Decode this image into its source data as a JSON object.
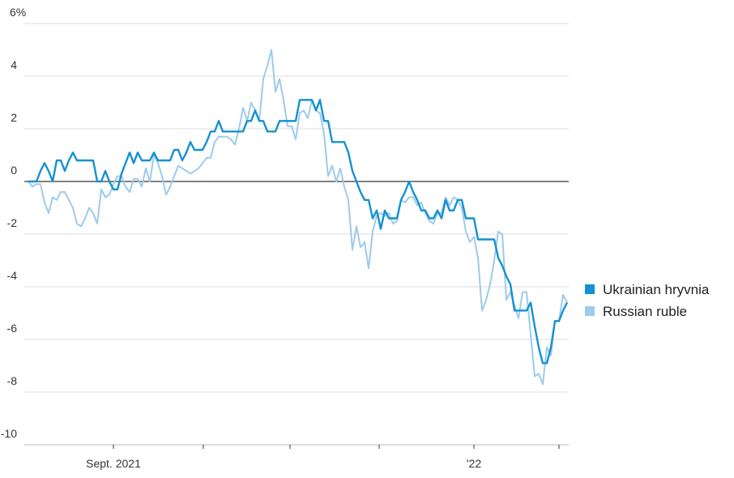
{
  "chart_data": {
    "type": "line",
    "ylim": [
      -10,
      6
    ],
    "yticks": [
      {
        "value": 6,
        "label": "6%"
      },
      4,
      2,
      0,
      -2,
      -4,
      -6,
      -8,
      -10
    ],
    "x_tick_labels": [
      "Sept. 2021",
      null,
      null,
      null,
      "'22",
      null
    ],
    "grid": true,
    "legend": "right",
    "series": [
      {
        "name": "Ukrainian hryvnia",
        "color": "#1591d1",
        "values": [
          0,
          0,
          0,
          0.4,
          0.7,
          0.4,
          0,
          0.8,
          0.8,
          0.4,
          0.8,
          1.1,
          0.8,
          0.8,
          0.8,
          0.8,
          0.8,
          0,
          0,
          0.4,
          0,
          -0.3,
          -0.3,
          0.3,
          0.7,
          1.1,
          0.7,
          1.1,
          0.8,
          0.8,
          0.8,
          1.1,
          0.8,
          0.8,
          0.8,
          0.8,
          1.2,
          1.2,
          0.8,
          1.1,
          1.5,
          1.2,
          1.2,
          1.2,
          1.5,
          1.9,
          1.9,
          2.3,
          1.9,
          1.9,
          1.9,
          1.9,
          1.9,
          1.9,
          2.3,
          2.3,
          2.7,
          2.3,
          2.3,
          1.9,
          1.9,
          1.9,
          2.3,
          2.3,
          2.3,
          2.3,
          2.3,
          3.1,
          3.1,
          3.1,
          3.1,
          2.7,
          3.1,
          2.3,
          2.3,
          1.5,
          1.5,
          1.5,
          1.5,
          1.1,
          0.4,
          0,
          -0.4,
          -0.7,
          -0.7,
          -1.4,
          -1.1,
          -1.8,
          -1.1,
          -1.4,
          -1.4,
          -1.4,
          -0.7,
          -0.4,
          0,
          -0.4,
          -0.7,
          -1.1,
          -1.1,
          -1.4,
          -1.4,
          -1.1,
          -1.4,
          -0.7,
          -1.1,
          -1.1,
          -0.7,
          -0.7,
          -1.4,
          -1.4,
          -1.4,
          -2.2,
          -2.2,
          -2.2,
          -2.2,
          -2.2,
          -2.9,
          -3.2,
          -3.6,
          -3.9,
          -4.9,
          -4.9,
          -4.9,
          -4.9,
          -4.6,
          -5.5,
          -6.3,
          -6.9,
          -6.9,
          -6.3,
          -5.3,
          -5.3,
          -4.9,
          -4.6
        ]
      },
      {
        "name": "Russian ruble",
        "color": "#9dcbeb",
        "values": [
          0,
          -0.2,
          -0.1,
          -0.1,
          -0.8,
          -1.2,
          -0.6,
          -0.7,
          -0.4,
          -0.4,
          -0.7,
          -1.0,
          -1.6,
          -1.7,
          -1.4,
          -1.0,
          -1.2,
          -1.6,
          -0.3,
          -0.6,
          -0.5,
          -0.1,
          0.2,
          0.2,
          -0.2,
          -0.4,
          0.1,
          0.1,
          -0.2,
          0.5,
          0,
          1.0,
          0.7,
          0.2,
          -0.5,
          -0.2,
          0.2,
          0.6,
          0.5,
          0.4,
          0.3,
          0.4,
          0.5,
          0.7,
          0.9,
          0.9,
          1.5,
          1.7,
          1.7,
          1.7,
          1.6,
          1.4,
          2.0,
          2.8,
          2.3,
          3.0,
          2.7,
          2.3,
          3.9,
          4.4,
          5.0,
          3.4,
          3.9,
          3.1,
          2.1,
          2.1,
          1.6,
          2.6,
          2.7,
          2.4,
          3.1,
          2.7,
          2.6,
          1.8,
          0.2,
          0.6,
          0,
          0.5,
          -0.2,
          -0.7,
          -2.6,
          -1.7,
          -2.5,
          -2.3,
          -3.3,
          -1.9,
          -1.3,
          -1.2,
          -1.3,
          -1.2,
          -1.6,
          -1.5,
          -0.7,
          -0.8,
          -0.6,
          -0.6,
          -0.9,
          -0.8,
          -1.2,
          -1.5,
          -1.6,
          -1.2,
          -1.2,
          -0.6,
          -0.9,
          -0.6,
          -0.7,
          -1.0,
          -1.9,
          -2.3,
          -2.1,
          -2.9,
          -4.9,
          -4.5,
          -3.9,
          -3.0,
          -1.9,
          -2.0,
          -4.5,
          -4.2,
          -4.7,
          -5.2,
          -4.2,
          -4.2,
          -5.8,
          -7.4,
          -7.3,
          -7.7,
          -6.3,
          -6.6,
          -5.3,
          -5.3,
          -4.3,
          -4.6
        ]
      }
    ]
  }
}
